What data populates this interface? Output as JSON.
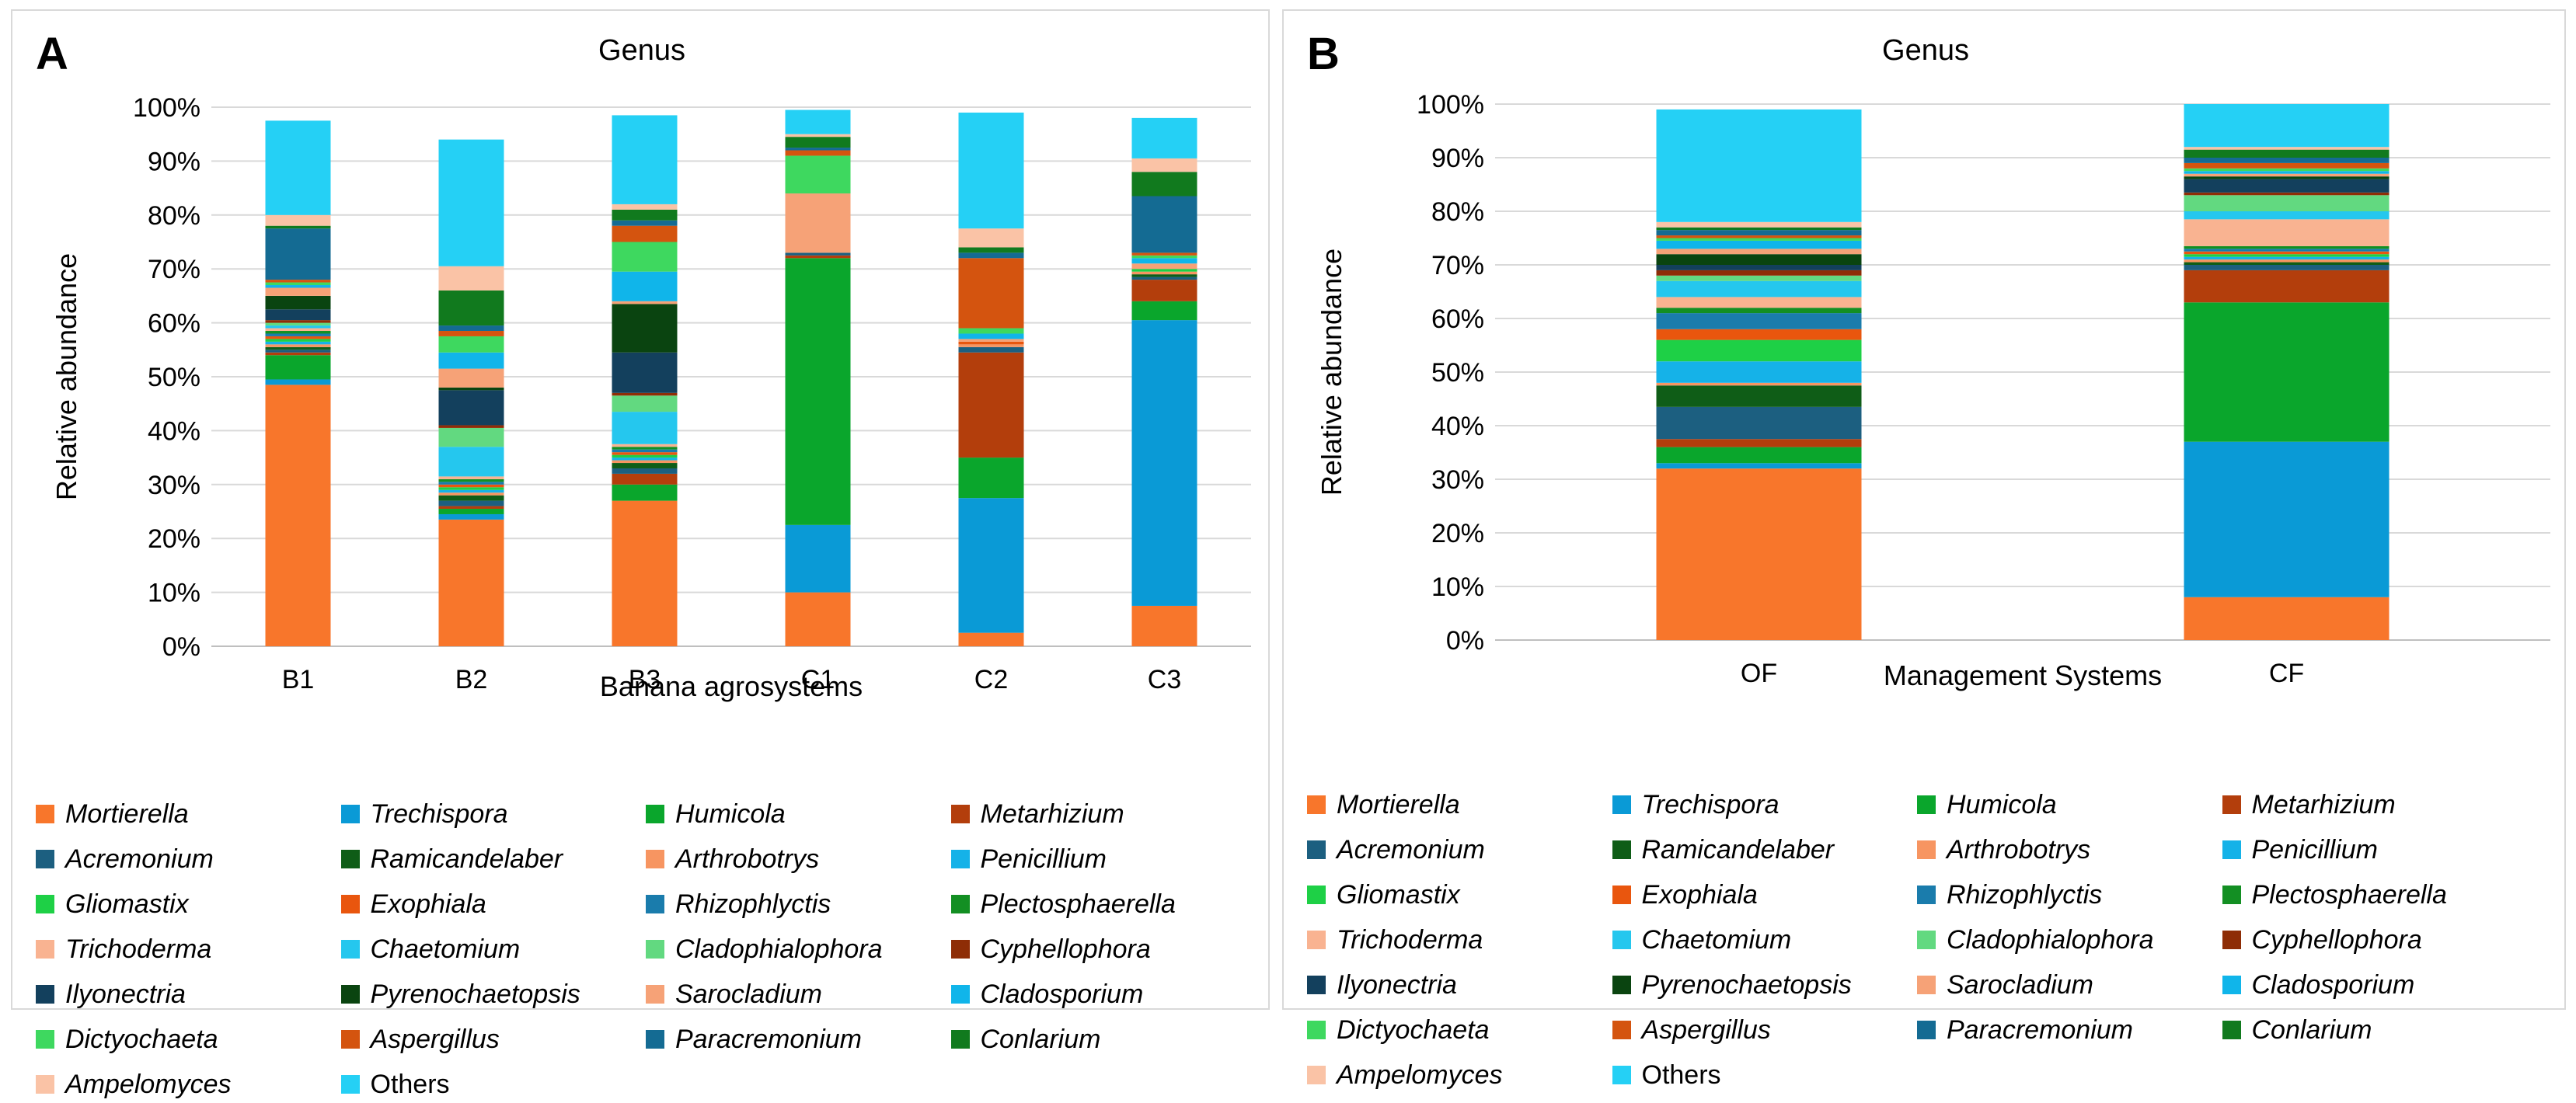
{
  "genera": [
    {
      "name": "Mortierella",
      "color": "#f8762b"
    },
    {
      "name": "Trechispora",
      "color": "#0a9ad6"
    },
    {
      "name": "Humicola",
      "color": "#0aa62c"
    },
    {
      "name": "Metarhizium",
      "color": "#b33e0c"
    },
    {
      "name": "Acremonium",
      "color": "#1c5f80"
    },
    {
      "name": "Ramicandelaber",
      "color": "#0f5d17"
    },
    {
      "name": "Arthrobotrys",
      "color": "#f79561"
    },
    {
      "name": "Penicillium",
      "color": "#15b2e8"
    },
    {
      "name": "Gliomastix",
      "color": "#1ed046"
    },
    {
      "name": "Exophiala",
      "color": "#e9560e"
    },
    {
      "name": "Rhizophlyctis",
      "color": "#1a7cac"
    },
    {
      "name": "Plectosphaerella",
      "color": "#138f23"
    },
    {
      "name": "Trichoderma",
      "color": "#f9b391"
    },
    {
      "name": "Chaetomium",
      "color": "#25c7ee"
    },
    {
      "name": "Cladophialophora",
      "color": "#62d980"
    },
    {
      "name": "Cyphellophora",
      "color": "#8e2d06"
    },
    {
      "name": "Ilyonectria",
      "color": "#13405d"
    },
    {
      "name": "Pyrenochaetopsis",
      "color": "#0a4410"
    },
    {
      "name": "Sarocladium",
      "color": "#f6a277"
    },
    {
      "name": "Cladosporium",
      "color": "#10b5ea"
    },
    {
      "name": "Dictyochaeta",
      "color": "#3ed85f"
    },
    {
      "name": "Aspergillus",
      "color": "#d4540f"
    },
    {
      "name": "Paracremonium",
      "color": "#146b93"
    },
    {
      "name": "Conlarium",
      "color": "#117a1e"
    },
    {
      "name": "Ampelomyces",
      "color": "#fac3a6"
    },
    {
      "name": "Others",
      "color": "#25d0f5"
    }
  ],
  "chart_data": [
    {
      "panel": "A",
      "type": "bar",
      "stacked": true,
      "title": "Genus",
      "xlabel": "Banana agrosystems",
      "ylabel": "Relative abundance",
      "ylim": [
        0,
        100
      ],
      "yticks": [
        "0%",
        "10%",
        "20%",
        "30%",
        "40%",
        "50%",
        "60%",
        "70%",
        "80%",
        "90%",
        "100%"
      ],
      "categories": [
        "B1",
        "B2",
        "B3",
        "C1",
        "C2",
        "C3"
      ],
      "series": [
        {
          "name": "Mortierella",
          "values": [
            48.5,
            23.5,
            27,
            10,
            2.5,
            7.5
          ]
        },
        {
          "name": "Trechispora",
          "values": [
            1,
            1,
            0,
            12.5,
            25,
            53
          ]
        },
        {
          "name": "Humicola",
          "values": [
            4.5,
            1,
            3,
            49.5,
            7.5,
            3.5
          ]
        },
        {
          "name": "Metarhizium",
          "values": [
            0.5,
            0.5,
            2,
            0.5,
            19.5,
            4
          ]
        },
        {
          "name": "Acremonium",
          "values": [
            0.5,
            1,
            1,
            0.5,
            1,
            0.5
          ]
        },
        {
          "name": "Ramicandelaber",
          "values": [
            0.5,
            1,
            1,
            0,
            0,
            0.5
          ]
        },
        {
          "name": "Arthrobotrys",
          "values": [
            0.5,
            0.5,
            0.5,
            0,
            0.5,
            0.5
          ]
        },
        {
          "name": "Penicillium",
          "values": [
            0.5,
            0.5,
            0.5,
            0,
            0,
            0
          ]
        },
        {
          "name": "Gliomastix",
          "values": [
            0.5,
            0.5,
            0.5,
            0,
            0,
            0.5
          ]
        },
        {
          "name": "Exophiala",
          "values": [
            0.5,
            0.5,
            0.5,
            0,
            0.5,
            0
          ]
        },
        {
          "name": "Rhizophlyctis",
          "values": [
            0.5,
            0.5,
            0.5,
            0,
            0,
            0
          ]
        },
        {
          "name": "Plectosphaerella",
          "values": [
            0.5,
            0.5,
            0.5,
            0,
            0,
            0
          ]
        },
        {
          "name": "Trichoderma",
          "values": [
            0.5,
            0.5,
            0.5,
            0,
            0,
            0
          ]
        },
        {
          "name": "Chaetomium",
          "values": [
            0.5,
            5.5,
            6,
            0,
            0,
            0
          ]
        },
        {
          "name": "Cladophialophora",
          "values": [
            0.5,
            3.5,
            3,
            0,
            0,
            0
          ]
        },
        {
          "name": "Cyphellophora",
          "values": [
            0.5,
            0.5,
            0.5,
            0,
            0,
            0
          ]
        },
        {
          "name": "Ilyonectria",
          "values": [
            2,
            6.5,
            7.5,
            0,
            0,
            0
          ]
        },
        {
          "name": "Pyrenochaetopsis",
          "values": [
            2.5,
            0.5,
            9,
            0,
            0,
            0
          ]
        },
        {
          "name": "Sarocladium",
          "values": [
            1.5,
            3.5,
            0.5,
            11,
            0.5,
            1
          ]
        },
        {
          "name": "Cladosporium",
          "values": [
            0.5,
            3,
            5.5,
            0,
            1,
            1
          ]
        },
        {
          "name": "Dictyochaeta",
          "values": [
            0.5,
            3,
            5.5,
            7,
            1,
            0.5
          ]
        },
        {
          "name": "Aspergillus",
          "values": [
            0.5,
            1,
            3,
            1,
            13,
            0.5
          ]
        },
        {
          "name": "Paracremonium",
          "values": [
            9.5,
            1,
            1,
            0.5,
            1,
            10.5
          ]
        },
        {
          "name": "Conlarium",
          "values": [
            0.5,
            6.5,
            2,
            2,
            1,
            4.5
          ]
        },
        {
          "name": "Ampelomyces",
          "values": [
            2,
            4.5,
            1,
            0.5,
            3.5,
            2.5
          ]
        },
        {
          "name": "Others",
          "values": [
            17.5,
            23.5,
            16.5,
            4.5,
            21.5,
            7.5
          ]
        }
      ]
    },
    {
      "panel": "B",
      "type": "bar",
      "stacked": true,
      "title": "Genus",
      "xlabel": "Management Systems",
      "ylabel": "Relative abundance",
      "ylim": [
        0,
        100
      ],
      "yticks": [
        "0%",
        "10%",
        "20%",
        "30%",
        "40%",
        "50%",
        "60%",
        "70%",
        "80%",
        "90%",
        "100%"
      ],
      "categories": [
        "OF",
        "CF"
      ],
      "series": [
        {
          "name": "Mortierella",
          "values": [
            32,
            8
          ]
        },
        {
          "name": "Trechispora",
          "values": [
            1,
            29
          ]
        },
        {
          "name": "Humicola",
          "values": [
            3,
            26
          ]
        },
        {
          "name": "Metarhizium",
          "values": [
            1.5,
            6
          ]
        },
        {
          "name": "Acremonium",
          "values": [
            6,
            1
          ]
        },
        {
          "name": "Ramicandelaber",
          "values": [
            4,
            0.5
          ]
        },
        {
          "name": "Arthrobotrys",
          "values": [
            0.5,
            0.5
          ]
        },
        {
          "name": "Penicillium",
          "values": [
            4,
            0.5
          ]
        },
        {
          "name": "Gliomastix",
          "values": [
            4,
            0.5
          ]
        },
        {
          "name": "Exophiala",
          "values": [
            2,
            0.5
          ]
        },
        {
          "name": "Rhizophlyctis",
          "values": [
            3,
            0.5
          ]
        },
        {
          "name": "Plectosphaerella",
          "values": [
            1,
            0.5
          ]
        },
        {
          "name": "Trichoderma",
          "values": [
            2,
            5
          ]
        },
        {
          "name": "Chaetomium",
          "values": [
            3,
            1.5
          ]
        },
        {
          "name": "Cladophialophora",
          "values": [
            1,
            3
          ]
        },
        {
          "name": "Cyphellophora",
          "values": [
            1,
            0.5
          ]
        },
        {
          "name": "Ilyonectria",
          "values": [
            1,
            2.5
          ]
        },
        {
          "name": "Pyrenochaetopsis",
          "values": [
            2,
            0.5
          ]
        },
        {
          "name": "Sarocladium",
          "values": [
            1,
            0.5
          ]
        },
        {
          "name": "Cladosporium",
          "values": [
            1.5,
            0.5
          ]
        },
        {
          "name": "Dictyochaeta",
          "values": [
            0.5,
            0.5
          ]
        },
        {
          "name": "Aspergillus",
          "values": [
            0.5,
            1
          ]
        },
        {
          "name": "Paracremonium",
          "values": [
            1,
            1
          ]
        },
        {
          "name": "Conlarium",
          "values": [
            0.5,
            1.5
          ]
        },
        {
          "name": "Ampelomyces",
          "values": [
            1,
            0.5
          ]
        },
        {
          "name": "Others",
          "values": [
            21,
            8
          ]
        }
      ]
    }
  ]
}
